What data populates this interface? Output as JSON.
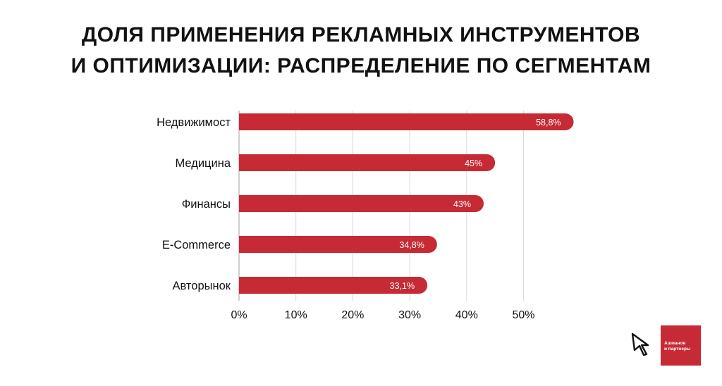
{
  "title_lines": [
    "ДОЛЯ ПРИМЕНЕНИЯ РЕКЛАМНЫХ ИНСТРУМЕНТОВ",
    "И ОПТИМИЗАЦИИ: РАСПРЕДЕЛЕНИЕ ПО СЕГМЕНТАМ"
  ],
  "chart_data": {
    "type": "bar",
    "orientation": "horizontal",
    "title": "ДОЛЯ ПРИМЕНЕНИЯ РЕКЛАМНЫХ ИНСТРУМЕНТОВ И ОПТИМИЗАЦИИ: РАСПРЕДЕЛЕНИЕ ПО СЕГМЕНТАМ",
    "categories": [
      "Недвижимост",
      "Медицина",
      "Финансы",
      "E-Commerce",
      "Авторынок"
    ],
    "values": [
      58.8,
      45,
      43,
      34.8,
      33.1
    ],
    "data_labels": [
      "58,8%",
      "45%",
      "43%",
      "34,8%",
      "33,1%"
    ],
    "x_ticks": [
      "0%",
      "10%",
      "20%",
      "30%",
      "40%",
      "50%"
    ],
    "xlim": [
      0,
      50
    ],
    "xlabel": "",
    "ylabel": "",
    "grid": "vertical",
    "bar_color": "#c62a34",
    "grid_color": "#d9d9d9"
  },
  "logo": {
    "line1": "Ашманов",
    "line2": "и партнеры",
    "color": "#c62a34"
  }
}
